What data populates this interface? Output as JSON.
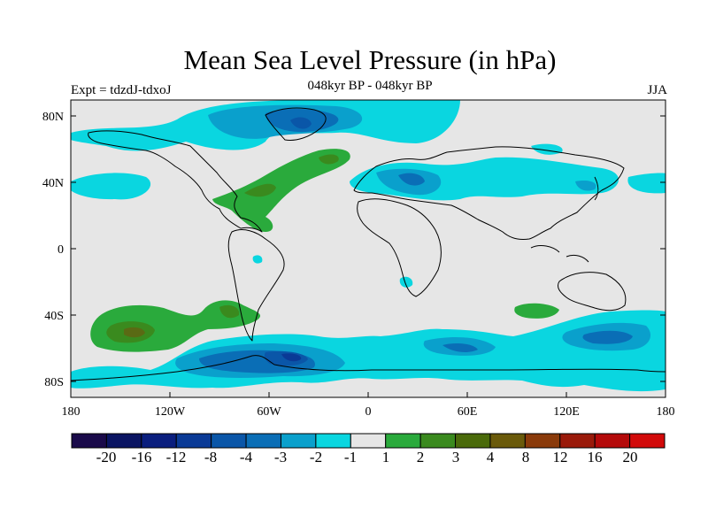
{
  "title": "Mean Sea Level Pressure (in hPa)",
  "subtitle_left": "Expt = tdzdJ-tdxoJ",
  "subtitle_center": "048kyr BP - 048kyr BP",
  "subtitle_right": "JJA",
  "lat_ticks": [
    "80N",
    "40N",
    "0",
    "40S",
    "80S"
  ],
  "lon_ticks": [
    "180",
    "120W",
    "60W",
    "0",
    "60E",
    "120E",
    "180"
  ],
  "colorbar": {
    "labels": [
      "-20",
      "-16",
      "-12",
      "-8",
      "-4",
      "-3",
      "-2",
      "-1",
      "1",
      "2",
      "3",
      "4",
      "8",
      "12",
      "16",
      "20"
    ],
    "colors": [
      "#1a0a4a",
      "#0a1462",
      "#0a1e7e",
      "#0a3a96",
      "#0a56a8",
      "#0a6eb6",
      "#0aa0cc",
      "#0ad6e0",
      "#e6e6e6",
      "#2aaa3c",
      "#3a8a1e",
      "#4a6a0a",
      "#6a5a0a",
      "#8a3a0a",
      "#9a1a0a",
      "#b40a0a",
      "#d20a0a"
    ]
  },
  "map_colors": {
    "background": "#e6e6e6",
    "neg1": "#0ad6e0",
    "neg2": "#0aa0cc",
    "neg3": "#0a6eb6",
    "neg4": "#0a56a8",
    "neg8": "#0a3a96",
    "pos1": "#2aaa3c",
    "pos2": "#3a8a1e",
    "pos3": "#5a6a14",
    "coast": "#000000"
  }
}
